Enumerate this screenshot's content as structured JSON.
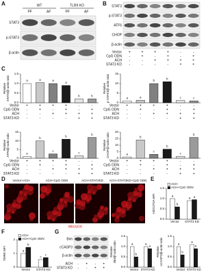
{
  "panels": {
    "A": {
      "letter": "A",
      "groups": [
        "WT",
        "TLR9 KO"
      ],
      "lanes": [
        "PF",
        "AF",
        "PF",
        "AF"
      ],
      "rows": [
        "STAT3",
        "p-STAT3",
        "β-actin"
      ]
    },
    "B": {
      "letter": "B",
      "rows": [
        "STAT3",
        "p-STAT3",
        "ATF6",
        "CHOP",
        "β-actin"
      ]
    },
    "C": {
      "letter": "C",
      "conditions": [
        {
          "name": "Vector",
          "signs": [
            "+",
            "+",
            "+",
            "+",
            "-",
            "-"
          ]
        },
        {
          "name": "CpG ODN",
          "signs": [
            "-",
            "+",
            "-",
            "+",
            "-",
            "+"
          ]
        },
        {
          "name": "ACH",
          "signs": [
            "-",
            "-",
            "+",
            "+",
            "+",
            "+"
          ]
        },
        {
          "name": "STAT3 KD",
          "signs": [
            "-",
            "-",
            "-",
            "-",
            "+",
            "+"
          ]
        }
      ]
    },
    "D": {
      "letter": "D",
      "images": [
        "Vector+ACH",
        "ACH+CpG ODN",
        "ACH+STAT3KD",
        "ACH+STAT3KD+CpG ODN"
      ],
      "stain": "MitoSOX"
    },
    "E": {
      "letter": "E"
    },
    "F": {
      "letter": "F"
    },
    "G": {
      "letter": "G",
      "rows": [
        "Bim",
        "cCASP3",
        "β-actin"
      ],
      "conditions": [
        {
          "name": "ACH",
          "signs": [
            "-",
            "+",
            "-",
            "+"
          ]
        },
        {
          "name": "STAT3 KD",
          "signs": [
            "-",
            "-",
            "+",
            "+"
          ]
        }
      ]
    }
  },
  "chart_data": [
    {
      "type": "bar",
      "y_label": [
        "Relative",
        "STAT3/β-actin ratio"
      ],
      "values": [
        1.0,
        1.05,
        1.0,
        0.9,
        0.2,
        0.2
      ],
      "colors": [
        "#ffffff",
        "#c8c8c8",
        "#808080",
        "#1a1a1a",
        "#e6e6e6",
        "#9a9a9a"
      ],
      "annotations": [
        "a",
        "a",
        "a",
        "a",
        "b",
        "b"
      ],
      "ylim": [
        0,
        1.5
      ],
      "yticks": [
        {
          "value": 0,
          "label": "0.0"
        },
        {
          "value": 0.5,
          "label": "0.5"
        },
        {
          "value": 1,
          "label": "1.0"
        },
        {
          "value": 1.5,
          "label": "1.5"
        }
      ]
    },
    {
      "type": "bar",
      "y_label": [
        "Relative",
        "p-STAT3/β-actin ratio"
      ],
      "values": [
        1,
        1.3,
        10,
        11,
        1.2,
        1
      ],
      "colors": [
        "#ffffff",
        "#c8c8c8",
        "#808080",
        "#1a1a1a",
        "#e6e6e6",
        "#9a9a9a"
      ],
      "annotations": [
        "a",
        "a",
        "b",
        "b",
        "c",
        "c"
      ],
      "ylim": [
        0,
        15
      ],
      "yticks": [
        0,
        5,
        10,
        15
      ]
    },
    {
      "type": "bar",
      "y_label": [
        "Relative",
        "ATF6/β-actin ratio"
      ],
      "values": [
        1,
        10,
        2.5,
        11,
        1.5,
        12
      ],
      "colors": [
        "#ffffff",
        "#c8c8c8",
        "#808080",
        "#1a1a1a",
        "#e6e6e6",
        "#9a9a9a"
      ],
      "annotations": [
        "a",
        "b",
        "c",
        "b",
        "c",
        "b"
      ],
      "ylim": [
        0,
        15
      ],
      "yticks": [
        0,
        5,
        10,
        15
      ]
    },
    {
      "type": "bar",
      "y_label": [
        "Relative",
        "CHOP/β-actin ratio"
      ],
      "values": [
        1,
        14,
        3,
        7,
        1.5,
        16
      ],
      "colors": [
        "#ffffff",
        "#c8c8c8",
        "#808080",
        "#1a1a1a",
        "#e6e6e6",
        "#9a9a9a"
      ],
      "annotations": [
        "a",
        "b",
        "c",
        "b",
        "c",
        "b"
      ],
      "ylim": [
        0,
        20
      ],
      "yticks": [
        0,
        5,
        10,
        15,
        20
      ]
    },
    {
      "type": "grouped-bar",
      "y_label": [
        "H2DCFDA MFI"
      ],
      "categories": [
        "Vector",
        "STAT3 KD"
      ],
      "series": [
        {
          "name": "ACH",
          "color": "#ffffff",
          "values": [
            1.0,
            0.9
          ],
          "annotations": [
            "a",
            "a"
          ]
        },
        {
          "name": "ACH+CpG ODN",
          "color": "#1a1a1a",
          "values": [
            0.6,
            0.95
          ],
          "annotations": [
            "b",
            "a"
          ]
        }
      ],
      "ylim": [
        0,
        1.5
      ],
      "yticks": [
        {
          "value": 0,
          "label": "0.0"
        },
        {
          "value": 0.5,
          "label": "0.5"
        },
        {
          "value": 1,
          "label": "1.0"
        },
        {
          "value": 1.5,
          "label": "1.5"
        }
      ],
      "legend": true
    },
    {
      "type": "grouped-bar",
      "y_label": [
        "TMRE MFI"
      ],
      "categories": [
        "Vector",
        "STAT3 KD"
      ],
      "series": [
        {
          "name": "ACH",
          "color": "#ffffff",
          "values": [
            1.0,
            0.55
          ],
          "annotations": [
            "a",
            "c"
          ]
        },
        {
          "name": "ACH+CpG ODN",
          "color": "#1a1a1a",
          "values": [
            1.45,
            0.7
          ],
          "annotations": [
            "b",
            "c"
          ]
        }
      ],
      "ylim": [
        0,
        2
      ],
      "yticks": [
        0,
        1,
        2
      ],
      "legend": true
    },
    {
      "type": "grouped-bar",
      "y_label": [
        "Relative",
        "Bim/β-actin ratio"
      ],
      "categories": [
        "Vector",
        "STAT3 KD"
      ],
      "series": [
        {
          "name": "ACH",
          "color": "#ffffff",
          "values": [
            1.0,
            1.0
          ],
          "annotations": [
            "a",
            "a"
          ]
        },
        {
          "name": "ACH+CpG ODN",
          "color": "#1a1a1a",
          "values": [
            0.5,
            0.9
          ],
          "annotations": [
            "b",
            "a"
          ]
        }
      ],
      "ylim": [
        0,
        1.5
      ],
      "yticks": [
        {
          "value": 0,
          "label": "0.0"
        },
        {
          "value": 0.5,
          "label": "0.5"
        },
        {
          "value": 1,
          "label": "1.0"
        },
        {
          "value": 1.5,
          "label": "1.5"
        }
      ],
      "legend": false
    },
    {
      "type": "grouped-bar",
      "y_label": [
        "Relative",
        "cCASP3/β-actin ratio"
      ],
      "categories": [
        "Vector",
        "STAT3 KD"
      ],
      "series": [
        {
          "name": "ACH",
          "color": "#ffffff",
          "values": [
            1.0,
            1.1
          ],
          "annotations": [
            "a",
            "a"
          ]
        },
        {
          "name": "ACH+CpG ODN",
          "color": "#1a1a1a",
          "values": [
            0.6,
            0.9
          ],
          "annotations": [
            "b",
            "a"
          ]
        }
      ],
      "ylim": [
        0,
        1.5
      ],
      "yticks": [
        {
          "value": 0,
          "label": "0.0"
        },
        {
          "value": 0.5,
          "label": "0.5"
        },
        {
          "value": 1,
          "label": "1.0"
        },
        {
          "value": 1.5,
          "label": "1.5"
        }
      ],
      "legend": false
    }
  ]
}
